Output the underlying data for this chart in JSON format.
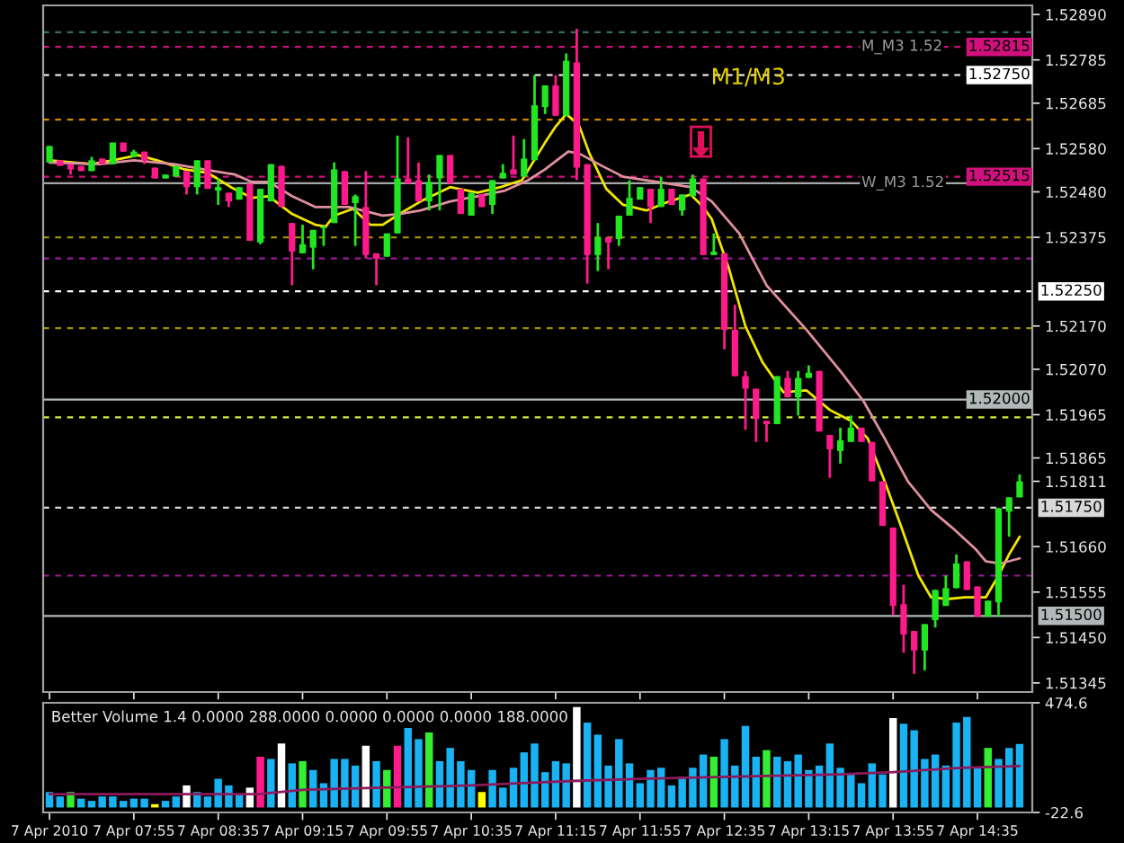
{
  "chart_data": [
    {
      "type": "candlestick",
      "tick_labels": "y",
      "x": [
        "2010-04-07T07:15",
        "2010-04-07T07:20",
        "2010-04-07T07:25",
        "2010-04-07T07:30",
        "2010-04-07T07:35",
        "2010-04-07T07:40",
        "2010-04-07T07:45",
        "2010-04-07T07:50",
        "2010-04-07T07:55",
        "2010-04-07T08:00",
        "2010-04-07T08:05",
        "2010-04-07T08:10",
        "2010-04-07T08:15",
        "2010-04-07T08:20",
        "2010-04-07T08:25",
        "2010-04-07T08:30",
        "2010-04-07T08:35",
        "2010-04-07T08:40",
        "2010-04-07T08:45",
        "2010-04-07T08:50",
        "2010-04-07T08:55",
        "2010-04-07T09:00",
        "2010-04-07T09:05",
        "2010-04-07T09:10",
        "2010-04-07T09:15",
        "2010-04-07T09:20",
        "2010-04-07T09:25",
        "2010-04-07T09:30",
        "2010-04-07T09:35",
        "2010-04-07T09:40",
        "2010-04-07T09:45",
        "2010-04-07T09:50",
        "2010-04-07T09:55",
        "2010-04-07T10:00",
        "2010-04-07T10:05",
        "2010-04-07T10:10",
        "2010-04-07T10:15",
        "2010-04-07T10:20",
        "2010-04-07T10:25",
        "2010-04-07T10:30",
        "2010-04-07T10:35",
        "2010-04-07T10:40",
        "2010-04-07T10:45",
        "2010-04-07T10:50",
        "2010-04-07T10:55",
        "2010-04-07T11:00",
        "2010-04-07T11:05",
        "2010-04-07T11:10",
        "2010-04-07T11:15",
        "2010-04-07T11:20",
        "2010-04-07T11:25",
        "2010-04-07T11:30",
        "2010-04-07T11:35",
        "2010-04-07T11:40",
        "2010-04-07T11:45",
        "2010-04-07T11:50",
        "2010-04-07T11:55",
        "2010-04-07T12:00",
        "2010-04-07T12:05",
        "2010-04-07T12:10",
        "2010-04-07T12:15",
        "2010-04-07T12:20",
        "2010-04-07T12:25",
        "2010-04-07T12:30",
        "2010-04-07T12:35",
        "2010-04-07T12:40",
        "2010-04-07T12:45",
        "2010-04-07T12:50",
        "2010-04-07T12:55",
        "2010-04-07T13:00",
        "2010-04-07T13:05",
        "2010-04-07T13:10",
        "2010-04-07T13:15",
        "2010-04-07T13:20",
        "2010-04-07T13:25",
        "2010-04-07T13:30",
        "2010-04-07T13:35",
        "2010-04-07T13:40",
        "2010-04-07T13:45",
        "2010-04-07T13:50",
        "2010-04-07T13:55",
        "2010-04-07T14:00",
        "2010-04-07T14:05",
        "2010-04-07T14:10",
        "2010-04-07T14:15",
        "2010-04-07T14:20",
        "2010-04-07T14:25",
        "2010-04-07T14:30",
        "2010-04-07T14:35",
        "2010-04-07T14:40",
        "2010-04-07T14:45",
        "2010-04-07T14:50",
        "2010-04-07T14:55"
      ],
      "series": [
        {
          "ohlc": [
            [
              1.52548,
              1.52586,
              1.52548,
              1.52586
            ],
            [
              1.52553,
              1.52553,
              1.5254,
              1.5254
            ],
            [
              1.52544,
              1.52544,
              1.5252,
              1.52532
            ],
            [
              1.5254,
              1.5254,
              1.52528,
              1.52528
            ],
            [
              1.52528,
              1.52561,
              1.52528,
              1.52553
            ],
            [
              1.52557,
              1.52557,
              1.52544,
              1.52544
            ],
            [
              1.52544,
              1.52594,
              1.52544,
              1.52594
            ],
            [
              1.52594,
              1.52594,
              1.52573,
              1.52573
            ],
            [
              1.52561,
              1.52577,
              1.52561,
              1.52573
            ],
            [
              1.52573,
              1.52573,
              1.52544,
              1.52553
            ],
            [
              1.52536,
              1.52536,
              1.52511,
              1.52511
            ],
            [
              1.52511,
              1.5252,
              1.52511,
              1.5252
            ],
            [
              1.52515,
              1.5254,
              1.52515,
              1.5254
            ],
            [
              1.52528,
              1.52528,
              1.52474,
              1.52491
            ],
            [
              1.52491,
              1.52553,
              1.52474,
              1.52553
            ],
            [
              1.52553,
              1.52553,
              1.52487,
              1.52487
            ],
            [
              1.52483,
              1.52511,
              1.5245,
              1.52491
            ],
            [
              1.52478,
              1.52478,
              1.52445,
              1.52458
            ],
            [
              1.52462,
              1.52491,
              1.52462,
              1.52491
            ],
            [
              1.52499,
              1.52499,
              1.52367,
              1.52367
            ],
            [
              1.52363,
              1.52487,
              1.52359,
              1.52487
            ],
            [
              1.52458,
              1.52544,
              1.52458,
              1.52544
            ],
            [
              1.5254,
              1.5254,
              1.52445,
              1.52445
            ],
            [
              1.52408,
              1.52408,
              1.52264,
              1.52342
            ],
            [
              1.52338,
              1.52404,
              1.52338,
              1.52359
            ],
            [
              1.52351,
              1.52392,
              1.52301,
              1.52392
            ],
            [
              1.52396,
              1.524,
              1.52355,
              1.524
            ],
            [
              1.52408,
              1.52548,
              1.52408,
              1.52532
            ],
            [
              1.52528,
              1.52528,
              1.5245,
              1.5245
            ],
            [
              1.52454,
              1.52474,
              1.52355,
              1.5247
            ],
            [
              1.52445,
              1.52528,
              1.52326,
              1.52334
            ],
            [
              1.52338,
              1.52338,
              1.52264,
              1.52326
            ],
            [
              1.5233,
              1.52384,
              1.5233,
              1.52384
            ],
            [
              1.52384,
              1.5261,
              1.52384,
              1.52511
            ],
            [
              1.52511,
              1.52606,
              1.52499,
              1.52499
            ],
            [
              1.52507,
              1.52548,
              1.52458,
              1.52458
            ],
            [
              1.52458,
              1.5252,
              1.52437,
              1.52503
            ],
            [
              1.52511,
              1.52565,
              1.52437,
              1.52565
            ],
            [
              1.52565,
              1.52565,
              1.52499,
              1.52499
            ],
            [
              1.52487,
              1.52487,
              1.52429,
              1.52429
            ],
            [
              1.52425,
              1.52478,
              1.52425,
              1.52478
            ],
            [
              1.52474,
              1.52474,
              1.52445,
              1.52445
            ],
            [
              1.5245,
              1.52507,
              1.52429,
              1.52507
            ],
            [
              1.52511,
              1.52544,
              1.52511,
              1.52524
            ],
            [
              1.52532,
              1.5261,
              1.5252,
              1.5252
            ],
            [
              1.52515,
              1.52602,
              1.52515,
              1.52557
            ],
            [
              1.52553,
              1.5275,
              1.52553,
              1.5268
            ],
            [
              1.52676,
              1.52726,
              1.5266,
              1.52726
            ],
            [
              1.52726,
              1.5275,
              1.52656,
              1.52656
            ],
            [
              1.52656,
              1.528,
              1.52656,
              1.52783
            ],
            [
              1.52779,
              1.52857,
              1.52507,
              1.52536
            ],
            [
              1.52544,
              1.52544,
              1.52268,
              1.52334
            ],
            [
              1.52334,
              1.52408,
              1.52297,
              1.52375
            ],
            [
              1.52375,
              1.52375,
              1.52301,
              1.52363
            ],
            [
              1.52371,
              1.52425,
              1.52355,
              1.52425
            ],
            [
              1.52425,
              1.52507,
              1.52425,
              1.52466
            ],
            [
              1.52462,
              1.52491,
              1.52462,
              1.52491
            ],
            [
              1.52487,
              1.52487,
              1.52408,
              1.52445
            ],
            [
              1.52445,
              1.52515,
              1.52445,
              1.52487
            ],
            [
              1.52487,
              1.52487,
              1.5245,
              1.5245
            ],
            [
              1.52437,
              1.52474,
              1.52425,
              1.52474
            ],
            [
              1.5247,
              1.5252,
              1.5247,
              1.52511
            ],
            [
              1.52511,
              1.52511,
              1.52334,
              1.52334
            ],
            [
              1.52334,
              1.52384,
              1.52334,
              1.52342
            ],
            [
              1.52338,
              1.52338,
              1.52116,
              1.52161
            ],
            [
              1.52161,
              1.52219,
              1.52054,
              1.52054
            ],
            [
              1.52054,
              1.52066,
              1.5193,
              1.52025
            ],
            [
              1.52025,
              1.52025,
              1.51902,
              1.51955
            ],
            [
              1.51951,
              1.51951,
              1.51902,
              1.51943
            ],
            [
              1.51943,
              1.52054,
              1.51943,
              1.52054
            ],
            [
              1.5205,
              1.52066,
              1.52005,
              1.52005
            ],
            [
              1.52005,
              1.52066,
              1.51963,
              1.5205
            ],
            [
              1.5205,
              1.52079,
              1.5205,
              1.52062
            ],
            [
              1.52066,
              1.52066,
              1.51926,
              1.51926
            ],
            [
              1.51918,
              1.51918,
              1.51819,
              1.51885
            ],
            [
              1.51881,
              1.51935,
              1.51852,
              1.51906
            ],
            [
              1.51902,
              1.51963,
              1.51902,
              1.51935
            ],
            [
              1.51935,
              1.51935,
              1.51902,
              1.51902
            ],
            [
              1.51902,
              1.51902,
              1.51811,
              1.51811
            ],
            [
              1.51811,
              1.51811,
              1.51708,
              1.51708
            ],
            [
              1.51704,
              1.51704,
              1.51502,
              1.51523
            ],
            [
              1.51527,
              1.51572,
              1.51415,
              1.51457
            ],
            [
              1.51465,
              1.51465,
              1.51366,
              1.5142
            ],
            [
              1.5142,
              1.51481,
              1.51374,
              1.51481
            ],
            [
              1.5149,
              1.5156,
              1.51473,
              1.5156
            ],
            [
              1.51523,
              1.51593,
              1.51523,
              1.51564
            ],
            [
              1.51564,
              1.51642,
              1.51564,
              1.51621
            ],
            [
              1.51626,
              1.51626,
              1.5156,
              1.5156
            ],
            [
              1.51568,
              1.51568,
              1.51498,
              1.51498
            ],
            [
              1.51498,
              1.51535,
              1.51498,
              1.51535
            ],
            [
              1.51531,
              1.51749,
              1.51498,
              1.51749
            ],
            [
              1.51741,
              1.51774,
              1.51683,
              1.51774
            ],
            [
              1.51774,
              1.51827,
              1.51774,
              1.51811
            ]
          ],
          "colors": [
            "#22e622",
            "#ff1a8c",
            "#ff1a8c",
            "#ff1a8c",
            "#22e622",
            "#ff1a8c",
            "#22e622",
            "#ff1a8c",
            "#22e622",
            "#ff1a8c",
            "#ff1a8c",
            "#22e622",
            "#22e622",
            "#ff1a8c",
            "#22e622",
            "#ff1a8c",
            "#22e622",
            "#ff1a8c",
            "#22e622",
            "#ff1a8c",
            "#22e622",
            "#22e622",
            "#ff1a8c",
            "#ff1a8c",
            "#22e622",
            "#22e622",
            "#22e622",
            "#22e622",
            "#ff1a8c",
            "#22e622",
            "#ff1a8c",
            "#ff1a8c",
            "#22e622",
            "#22e622",
            "#ff1a8c",
            "#ff1a8c",
            "#22e622",
            "#22e622",
            "#ff1a8c",
            "#ff1a8c",
            "#22e622",
            "#ff1a8c",
            "#22e622",
            "#22e622",
            "#ff1a8c",
            "#22e622",
            "#22e622",
            "#22e622",
            "#ff1a8c",
            "#22e622",
            "#ff1a8c",
            "#ff1a8c",
            "#22e622",
            "#ff1a8c",
            "#22e622",
            "#22e622",
            "#22e622",
            "#ff1a8c",
            "#22e622",
            "#ff1a8c",
            "#22e622",
            "#22e622",
            "#ff1a8c",
            "#22e622",
            "#ff1a8c",
            "#ff1a8c",
            "#ff1a8c",
            "#ff1a8c",
            "#ff1a8c",
            "#22e622",
            "#ff1a8c",
            "#22e622",
            "#22e622",
            "#ff1a8c",
            "#ff1a8c",
            "#22e622",
            "#22e622",
            "#ff1a8c",
            "#ff1a8c",
            "#ff1a8c",
            "#ff1a8c",
            "#ff1a8c",
            "#ff1a8c",
            "#22e622",
            "#22e622",
            "#22e622",
            "#22e622",
            "#ff1a8c",
            "#ff1a8c",
            "#22e622",
            "#22e622",
            "#22e622",
            "#22e622"
          ]
        },
        {
          "type": "line",
          "color": "#f2e600",
          "x": [
            "2010-04-07T07:15",
            "2010-04-07T07:35",
            "2010-04-07T07:45",
            "2010-04-07T07:57",
            "2010-04-07T08:06",
            "2010-04-07T08:19",
            "2010-04-07T08:30",
            "2010-04-07T08:41",
            "2010-04-07T08:51",
            "2010-04-07T08:59",
            "2010-04-07T09:10",
            "2010-04-07T09:21",
            "2010-04-07T09:26",
            "2010-04-07T09:30",
            "2010-04-07T09:39",
            "2010-04-07T09:47",
            "2010-04-07T09:53",
            "2010-04-07T10:01",
            "2010-04-07T10:11",
            "2010-04-07T10:25",
            "2010-04-07T10:38",
            "2010-04-07T10:49",
            "2010-04-07T10:59",
            "2010-04-07T11:10",
            "2010-04-07T11:15",
            "2010-04-07T11:20",
            "2010-04-07T11:26",
            "2010-04-07T11:31",
            "2010-04-07T11:39",
            "2010-04-07T11:47",
            "2010-04-07T11:58",
            "2010-04-07T12:09",
            "2010-04-07T12:19",
            "2010-04-07T12:25",
            "2010-04-07T12:29",
            "2010-04-07T12:37",
            "2010-04-07T12:45",
            "2010-04-07T12:53",
            "2010-04-07T13:03",
            "2010-04-07T13:14",
            "2010-04-07T13:25",
            "2010-04-07T13:35",
            "2010-04-07T13:43",
            "2010-04-07T13:51",
            "2010-04-07T13:59",
            "2010-04-07T14:07",
            "2010-04-07T14:13",
            "2010-04-07T14:21",
            "2010-04-07T14:29",
            "2010-04-07T14:39",
            "2010-04-07T14:45",
            "2010-04-07T14:50",
            "2010-04-07T14:55"
          ],
          "values": [
            1.52553,
            1.52544,
            1.52553,
            1.52565,
            1.52553,
            1.52532,
            1.52524,
            1.52491,
            1.52466,
            1.5247,
            1.52429,
            1.52404,
            1.524,
            1.52425,
            1.52441,
            1.52404,
            1.52404,
            1.52429,
            1.52458,
            1.52491,
            1.52478,
            1.52491,
            1.52507,
            1.52594,
            1.52631,
            1.5266,
            1.52635,
            1.52569,
            1.52487,
            1.5245,
            1.52437,
            1.52458,
            1.52474,
            1.52445,
            1.52417,
            1.52305,
            1.52169,
            1.52087,
            1.52017,
            1.52021,
            1.51976,
            1.51951,
            1.5191,
            1.51811,
            1.51704,
            1.51593,
            1.51543,
            1.51539,
            1.51543,
            1.51543,
            1.51593,
            1.51642,
            1.51683
          ]
        },
        {
          "type": "line",
          "color": "#e0909e",
          "x": [
            "2010-04-07T07:15",
            "2010-04-07T07:39",
            "2010-04-07T07:55",
            "2010-04-07T08:14",
            "2010-04-07T08:33",
            "2010-04-07T08:43",
            "2010-04-07T08:51",
            "2010-04-07T08:59",
            "2010-04-07T09:10",
            "2010-04-07T09:21",
            "2010-04-07T09:37",
            "2010-04-07T09:53",
            "2010-04-07T10:01",
            "2010-04-07T10:11",
            "2010-04-07T10:25",
            "2010-04-07T10:38",
            "2010-04-07T10:51",
            "2010-04-07T11:02",
            "2010-04-07T11:10",
            "2010-04-07T11:21",
            "2010-04-07T11:26",
            "2010-04-07T11:37",
            "2010-04-07T11:47",
            "2010-04-07T12:03",
            "2010-04-07T12:19",
            "2010-04-07T12:29",
            "2010-04-07T12:42",
            "2010-04-07T12:55",
            "2010-04-07T13:14",
            "2010-04-07T13:30",
            "2010-04-07T13:41",
            "2010-04-07T13:51",
            "2010-04-07T14:02",
            "2010-04-07T14:13",
            "2010-04-07T14:23",
            "2010-04-07T14:34",
            "2010-04-07T14:39",
            "2010-04-07T14:46",
            "2010-04-07T14:55"
          ],
          "values": [
            1.52548,
            1.52544,
            1.52553,
            1.52544,
            1.52528,
            1.5252,
            1.52503,
            1.52503,
            1.5247,
            1.52445,
            1.52445,
            1.52425,
            1.52429,
            1.52437,
            1.52458,
            1.5247,
            1.52483,
            1.52507,
            1.52532,
            1.52573,
            1.52569,
            1.5254,
            1.52515,
            1.52503,
            1.52491,
            1.52458,
            1.52384,
            1.52264,
            1.52161,
            1.52066,
            1.51996,
            1.5191,
            1.51811,
            1.51745,
            1.51704,
            1.51655,
            1.51626,
            1.51621,
            1.51633
          ]
        }
      ],
      "xlim": [
        "2010-04-07T07:12",
        "2010-04-07T15:01"
      ],
      "xticks": [
        {
          "value": "2010-04-07T07:15",
          "label": null
        },
        {
          "value": "2010-04-07T07:55",
          "label": null
        },
        {
          "value": "2010-04-07T08:35",
          "label": null
        },
        {
          "value": "2010-04-07T09:15",
          "label": null
        },
        {
          "value": "2010-04-07T09:55",
          "label": null
        },
        {
          "value": "2010-04-07T10:35",
          "label": null
        },
        {
          "value": "2010-04-07T11:15",
          "label": null
        },
        {
          "value": "2010-04-07T11:55",
          "label": null
        },
        {
          "value": "2010-04-07T12:35",
          "label": null
        },
        {
          "value": "2010-04-07T13:15",
          "label": null
        },
        {
          "value": "2010-04-07T13:55",
          "label": null
        },
        {
          "value": "2010-04-07T14:35",
          "label": null
        }
      ],
      "ylim": [
        1.51324,
        1.52911
      ],
      "yticks": [
        {
          "value": 1.5289,
          "label": "1.52890"
        },
        1.52785,
        1.52685,
        {
          "value": 1.5258,
          "label": "1.52580"
        },
        {
          "value": 1.5248,
          "label": "1.52480"
        },
        1.52375,
        {
          "value": 1.5217,
          "label": "1.52170"
        },
        {
          "value": 1.5207,
          "label": "1.52070"
        },
        1.51965,
        1.51865,
        1.51811,
        {
          "value": 1.5166,
          "label": "1.51660"
        },
        1.51555,
        {
          "value": 1.5145,
          "label": "1.51450"
        },
        1.51345
      ],
      "ref_lines": [
        {
          "axis": "y",
          "value": 1.52849,
          "color": "#2f7060",
          "line_style": "dashed"
        },
        {
          "axis": "y",
          "value": 1.52815,
          "label": "1.52815",
          "color": "#d0107c",
          "line_style": "dashed"
        },
        {
          "axis": "y",
          "value": 1.5275,
          "label": "1.52750",
          "color": "#ffffff",
          "line_style": "dashed"
        },
        {
          "axis": "y",
          "value": 1.52647,
          "color": "#d08a00",
          "line_style": "dashed"
        },
        {
          "axis": "y",
          "value": 1.52515,
          "label": "1.52515",
          "color": "#d0107c",
          "line_style": "dashed"
        },
        {
          "axis": "y",
          "value": 1.525,
          "color": "#a8a8a8",
          "line_style": "solid"
        },
        {
          "axis": "y",
          "value": 1.52375,
          "color": "#a09000",
          "line_style": "dashed"
        },
        {
          "axis": "y",
          "value": 1.52326,
          "color": "#9a1a9a",
          "line_style": "dashed"
        },
        {
          "axis": "y",
          "value": 1.5225,
          "label": "1.52250",
          "color": "#ffffff",
          "line_style": "dashed"
        },
        {
          "axis": "y",
          "value": 1.52165,
          "color": "#a09000",
          "line_style": "dashed"
        },
        {
          "axis": "y",
          "value": 1.52,
          "label": "1.52000",
          "color": "#b0b8b8",
          "line_style": "solid"
        },
        {
          "axis": "y",
          "value": 1.51959,
          "color": "#d0f040",
          "line_style": "dashed"
        },
        {
          "axis": "y",
          "value": 1.5175,
          "label": "1.51750",
          "color": "#d8d8d8",
          "line_style": "dashed"
        },
        {
          "axis": "y",
          "value": 1.51593,
          "color": "#9a1a9a",
          "line_style": "dashed"
        },
        {
          "axis": "y",
          "value": 1.515,
          "label": "1.51500",
          "color": "#b0b8b8",
          "line_style": "solid"
        }
      ],
      "annotations": [
        "M1/M3",
        {
          "text": "M_M3 1.52",
          "x": "2010-04-07T13:40",
          "y": 1.52815
        },
        {
          "text": "W_M3 1.52",
          "x": "2010-04-07T13:40",
          "y": 1.525
        }
      ]
    },
    {
      "type": "bar",
      "title": "Better Volume 1.4 0.0000 288.0000 0.0000 0.0000 0.0000 188.0000",
      "x": [
        "2010-04-07T07:15",
        "2010-04-07T07:20",
        "2010-04-07T07:25",
        "2010-04-07T07:30",
        "2010-04-07T07:35",
        "2010-04-07T07:40",
        "2010-04-07T07:45",
        "2010-04-07T07:50",
        "2010-04-07T07:55",
        "2010-04-07T08:00",
        "2010-04-07T08:05",
        "2010-04-07T08:10",
        "2010-04-07T08:15",
        "2010-04-07T08:20",
        "2010-04-07T08:25",
        "2010-04-07T08:30",
        "2010-04-07T08:35",
        "2010-04-07T08:40",
        "2010-04-07T08:45",
        "2010-04-07T08:50",
        "2010-04-07T08:55",
        "2010-04-07T09:00",
        "2010-04-07T09:05",
        "2010-04-07T09:10",
        "2010-04-07T09:15",
        "2010-04-07T09:20",
        "2010-04-07T09:25",
        "2010-04-07T09:30",
        "2010-04-07T09:35",
        "2010-04-07T09:40",
        "2010-04-07T09:45",
        "2010-04-07T09:50",
        "2010-04-07T09:55",
        "2010-04-07T10:00",
        "2010-04-07T10:05",
        "2010-04-07T10:10",
        "2010-04-07T10:15",
        "2010-04-07T10:20",
        "2010-04-07T10:25",
        "2010-04-07T10:30",
        "2010-04-07T10:35",
        "2010-04-07T10:40",
        "2010-04-07T10:45",
        "2010-04-07T10:50",
        "2010-04-07T10:55",
        "2010-04-07T11:00",
        "2010-04-07T11:05",
        "2010-04-07T11:10",
        "2010-04-07T11:15",
        "2010-04-07T11:20",
        "2010-04-07T11:25",
        "2010-04-07T11:30",
        "2010-04-07T11:35",
        "2010-04-07T11:40",
        "2010-04-07T11:45",
        "2010-04-07T11:50",
        "2010-04-07T11:55",
        "2010-04-07T12:00",
        "2010-04-07T12:05",
        "2010-04-07T12:10",
        "2010-04-07T12:15",
        "2010-04-07T12:20",
        "2010-04-07T12:25",
        "2010-04-07T12:30",
        "2010-04-07T12:35",
        "2010-04-07T12:40",
        "2010-04-07T12:45",
        "2010-04-07T12:50",
        "2010-04-07T12:55",
        "2010-04-07T13:00",
        "2010-04-07T13:05",
        "2010-04-07T13:10",
        "2010-04-07T13:15",
        "2010-04-07T13:20",
        "2010-04-07T13:25",
        "2010-04-07T13:30",
        "2010-04-07T13:35",
        "2010-04-07T13:40",
        "2010-04-07T13:45",
        "2010-04-07T13:50",
        "2010-04-07T13:55",
        "2010-04-07T14:00",
        "2010-04-07T14:05",
        "2010-04-07T14:10",
        "2010-04-07T14:15",
        "2010-04-07T14:20",
        "2010-04-07T14:25",
        "2010-04-07T14:30",
        "2010-04-07T14:35",
        "2010-04-07T14:40",
        "2010-04-07T14:45",
        "2010-04-07T14:50",
        "2010-04-07T14:55"
      ],
      "series": [
        {
          "values": [
            70,
            50,
            70,
            40,
            30,
            50,
            50,
            30,
            40,
            40,
            15,
            30,
            50,
            100,
            70,
            50,
            130,
            100,
            60,
            90,
            230,
            220,
            290,
            200,
            210,
            170,
            110,
            220,
            220,
            190,
            280,
            210,
            170,
            280,
            360,
            310,
            340,
            210,
            270,
            210,
            170,
            70,
            170,
            90,
            180,
            250,
            290,
            160,
            210,
            200,
            455,
            385,
            330,
            190,
            310,
            200,
            110,
            170,
            180,
            100,
            140,
            180,
            240,
            230,
            310,
            190,
            370,
            230,
            260,
            230,
            210,
            240,
            170,
            190,
            290,
            180,
            150,
            110,
            200,
            150,
            405,
            380,
            350,
            220,
            240,
            190,
            385,
            410,
            180,
            270,
            220,
            270,
            288
          ],
          "colors": [
            "#19b2f2",
            "#19b2f2",
            "#33ee33",
            "#19b2f2",
            "#19b2f2",
            "#19b2f2",
            "#19b2f2",
            "#19b2f2",
            "#19b2f2",
            "#19b2f2",
            "#ffff00",
            "#19b2f2",
            "#19b2f2",
            "#ffffff",
            "#19b2f2",
            "#19b2f2",
            "#19b2f2",
            "#19b2f2",
            "#19b2f2",
            "#ffffff",
            "#ff1a8c",
            "#19b2f2",
            "#ffffff",
            "#19b2f2",
            "#33ee33",
            "#19b2f2",
            "#19b2f2",
            "#19b2f2",
            "#19b2f2",
            "#19b2f2",
            "#ffffff",
            "#19b2f2",
            "#33ee33",
            "#ff1a8c",
            "#19b2f2",
            "#19b2f2",
            "#33ee33",
            "#19b2f2",
            "#19b2f2",
            "#19b2f2",
            "#19b2f2",
            "#ffff00",
            "#19b2f2",
            "#19b2f2",
            "#19b2f2",
            "#19b2f2",
            "#19b2f2",
            "#19b2f2",
            "#19b2f2",
            "#19b2f2",
            "#ffffff",
            "#19b2f2",
            "#19b2f2",
            "#19b2f2",
            "#19b2f2",
            "#19b2f2",
            "#19b2f2",
            "#19b2f2",
            "#19b2f2",
            "#19b2f2",
            "#19b2f2",
            "#19b2f2",
            "#19b2f2",
            "#33ee33",
            "#19b2f2",
            "#19b2f2",
            "#19b2f2",
            "#19b2f2",
            "#33ee33",
            "#19b2f2",
            "#19b2f2",
            "#19b2f2",
            "#19b2f2",
            "#19b2f2",
            "#19b2f2",
            "#19b2f2",
            "#19b2f2",
            "#19b2f2",
            "#19b2f2",
            "#19b2f2",
            "#ffffff",
            "#19b2f2",
            "#19b2f2",
            "#19b2f2",
            "#19b2f2",
            "#19b2f2",
            "#19b2f2",
            "#19b2f2",
            "#19b2f2",
            "#33ee33",
            "#19b2f2",
            "#19b2f2",
            "#19b2f2"
          ]
        },
        {
          "type": "line",
          "color": "#8c1a5a",
          "x": [
            "2010-04-07T07:15",
            "2010-04-07T08:54",
            "2010-04-07T09:15",
            "2010-04-07T09:53",
            "2010-04-07T10:35",
            "2010-04-07T10:59",
            "2010-04-07T11:23",
            "2010-04-07T11:55",
            "2010-04-07T12:41",
            "2010-04-07T13:29",
            "2010-04-07T13:55",
            "2010-04-07T14:27",
            "2010-04-07T14:55"
          ],
          "values": [
            60,
            60,
            80,
            90,
            100,
            110,
            120,
            130,
            140,
            150,
            160,
            180,
            188
          ]
        }
      ],
      "xlim": [
        "2010-04-07T07:12",
        "2010-04-07T15:01"
      ],
      "xticks": [
        {
          "value": "2010-04-07T07:15",
          "label": "7 Apr 2010"
        },
        {
          "value": "2010-04-07T07:55",
          "label": "7 Apr 07:55"
        },
        {
          "value": "2010-04-07T08:35",
          "label": "7 Apr 08:35"
        },
        {
          "value": "2010-04-07T09:15",
          "label": "7 Apr 09:15"
        },
        {
          "value": "2010-04-07T09:55",
          "label": "7 Apr 09:55"
        },
        {
          "value": "2010-04-07T10:35",
          "label": "7 Apr 10:35"
        },
        {
          "value": "2010-04-07T11:15",
          "label": "7 Apr 11:15"
        },
        {
          "value": "2010-04-07T11:55",
          "label": "7 Apr 11:55"
        },
        {
          "value": "2010-04-07T12:35",
          "label": "7 Apr 12:35"
        },
        {
          "value": "2010-04-07T13:15",
          "label": "7 Apr 13:15"
        },
        {
          "value": "2010-04-07T13:55",
          "label": "7 Apr 13:55"
        },
        {
          "value": "2010-04-07T14:35",
          "label": "7 Apr 14:35"
        }
      ],
      "ylim": [
        -22.6,
        474.6
      ],
      "yticks": [
        474.6,
        -22.6
      ]
    }
  ]
}
